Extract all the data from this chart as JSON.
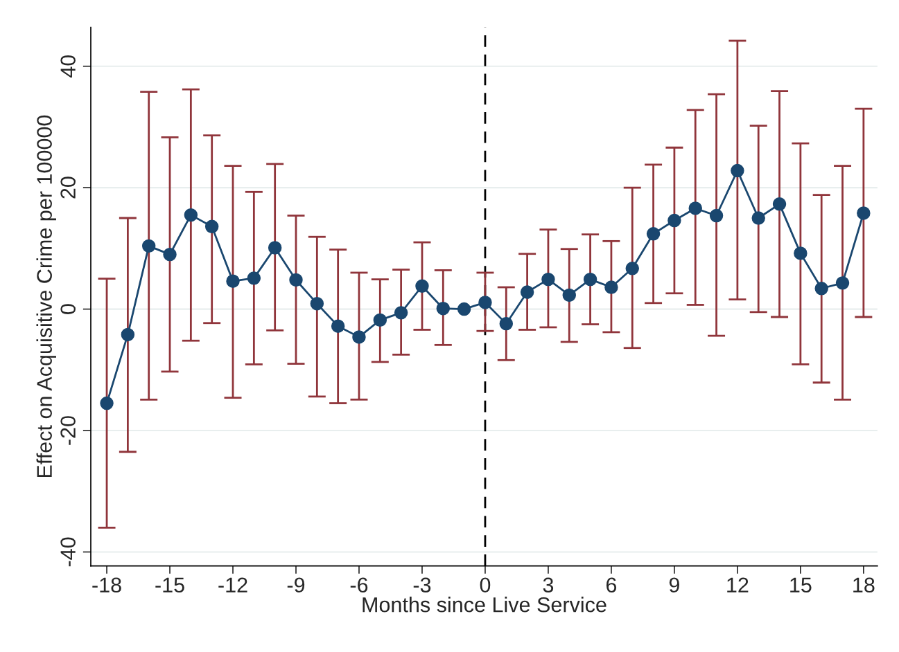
{
  "chart_data": {
    "type": "line",
    "xlabel": "Months since Live Service",
    "ylabel": "Effect on Acquisitive Crime per 100000",
    "x": [
      -18,
      -17,
      -16,
      -15,
      -14,
      -13,
      -12,
      -11,
      -10,
      -9,
      -8,
      -7,
      -6,
      -5,
      -4,
      -3,
      -2,
      -1,
      0,
      1,
      2,
      3,
      4,
      5,
      6,
      7,
      8,
      9,
      10,
      11,
      12,
      13,
      14,
      15,
      16,
      17,
      18
    ],
    "series": [
      {
        "color": "#1a476f",
        "values": [
          -15.5,
          -4.2,
          10.4,
          9.0,
          15.5,
          13.6,
          4.6,
          5.1,
          10.1,
          4.8,
          0.9,
          -2.8,
          -4.6,
          -1.8,
          -0.6,
          3.8,
          0.1,
          0.0,
          1.1,
          -2.4,
          2.8,
          4.9,
          2.3,
          4.9,
          3.6,
          6.7,
          12.4,
          14.6,
          16.6,
          15.4,
          22.8,
          15.0,
          17.3,
          9.2,
          3.4,
          4.3,
          15.8
        ],
        "errors": [
          [
            -36,
            5
          ],
          [
            -23.5,
            15
          ],
          [
            -14.9,
            35.8
          ],
          [
            -10.3,
            28.3
          ],
          [
            -5.2,
            36.2
          ],
          [
            -2.3,
            28.6
          ],
          [
            -14.6,
            23.6
          ],
          [
            -9.1,
            19.3
          ],
          [
            -3.5,
            23.9
          ],
          [
            -9,
            15.4
          ],
          [
            -14.4,
            11.9
          ],
          [
            -15.5,
            9.8
          ],
          [
            -14.9,
            6
          ],
          [
            -8.7,
            4.9
          ],
          [
            -7.5,
            6.5
          ],
          [
            -3.4,
            11
          ],
          [
            -5.9,
            6.4
          ],
          null,
          [
            -3.6,
            6
          ],
          [
            -8.4,
            3.6
          ],
          [
            -3.4,
            9.1
          ],
          [
            -3,
            13.1
          ],
          [
            -5.4,
            9.9
          ],
          [
            -2.5,
            12.3
          ],
          [
            -3.8,
            11.2
          ],
          [
            -6.4,
            20
          ],
          [
            1.0,
            23.8
          ],
          [
            2.6,
            26.6
          ],
          [
            0.7,
            32.8
          ],
          [
            -4.4,
            35.4
          ],
          [
            1.6,
            44.2
          ],
          [
            -0.5,
            30.2
          ],
          [
            -1.3,
            35.9
          ],
          [
            -9.1,
            27.3
          ],
          [
            -12.1,
            18.8
          ],
          [
            -14.9,
            23.6
          ],
          [
            -1.3,
            33
          ]
        ]
      }
    ],
    "marker": "circle",
    "line_style": "solid",
    "xlim": [
      -18.76,
      18.66
    ],
    "ylim": [
      -42.3,
      46.4
    ],
    "xticks": [
      -18,
      -15,
      -12,
      -9,
      -6,
      -3,
      0,
      3,
      6,
      9,
      12,
      15,
      18
    ],
    "yticks": [
      {
        "value": -40,
        "label": "-40"
      },
      {
        "value": -20,
        "label": "-20"
      },
      0,
      20,
      40
    ],
    "ref_lines": [
      {
        "axis": "x",
        "value": 0,
        "color": "#000000",
        "line_style": "dashed"
      }
    ],
    "grid": "y"
  }
}
